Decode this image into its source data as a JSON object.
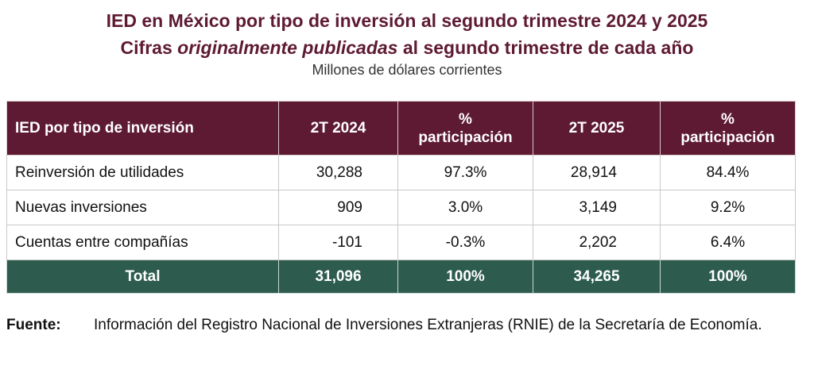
{
  "header": {
    "title_line1": "IED en México por tipo de inversión al segundo trimestre 2024 y 2025",
    "title_line2_before": "Cifras ",
    "title_line2_italic": "originalmente publicadas",
    "title_line2_after": " al segundo trimestre de cada año",
    "subtitle": "Millones de dólares corrientes"
  },
  "table": {
    "columns": {
      "concept": "IED por tipo de inversión",
      "t2024": "2T 2024",
      "share2024_line1": "%",
      "share2024_line2": "participación",
      "t2025": "2T 2025",
      "share2025_line1": "%",
      "share2025_line2": "participación"
    },
    "rows": [
      {
        "concept": "Reinversión de utilidades",
        "v2024": "30,288",
        "p2024": "97.3%",
        "v2025": "28,914",
        "p2025": "84.4%"
      },
      {
        "concept": "Nuevas inversiones",
        "v2024": "909",
        "p2024": "3.0%",
        "v2025": "3,149",
        "p2025": "9.2%"
      },
      {
        "concept": "Cuentas entre compañías",
        "v2024": "-101",
        "p2024": "-0.3%",
        "v2025": "2,202",
        "p2025": "6.4%"
      }
    ],
    "total": {
      "concept": "Total",
      "v2024": "31,096",
      "p2024": "100%",
      "v2025": "34,265",
      "p2025": "100%"
    }
  },
  "source": {
    "label": "Fuente:",
    "text": "Información del Registro Nacional de Inversiones Extranjeras (RNIE) de la Secretaría de Economía."
  },
  "colors": {
    "header_bg": "#5e1a33",
    "total_bg": "#2d5c4e",
    "title_color": "#5e1a33"
  }
}
